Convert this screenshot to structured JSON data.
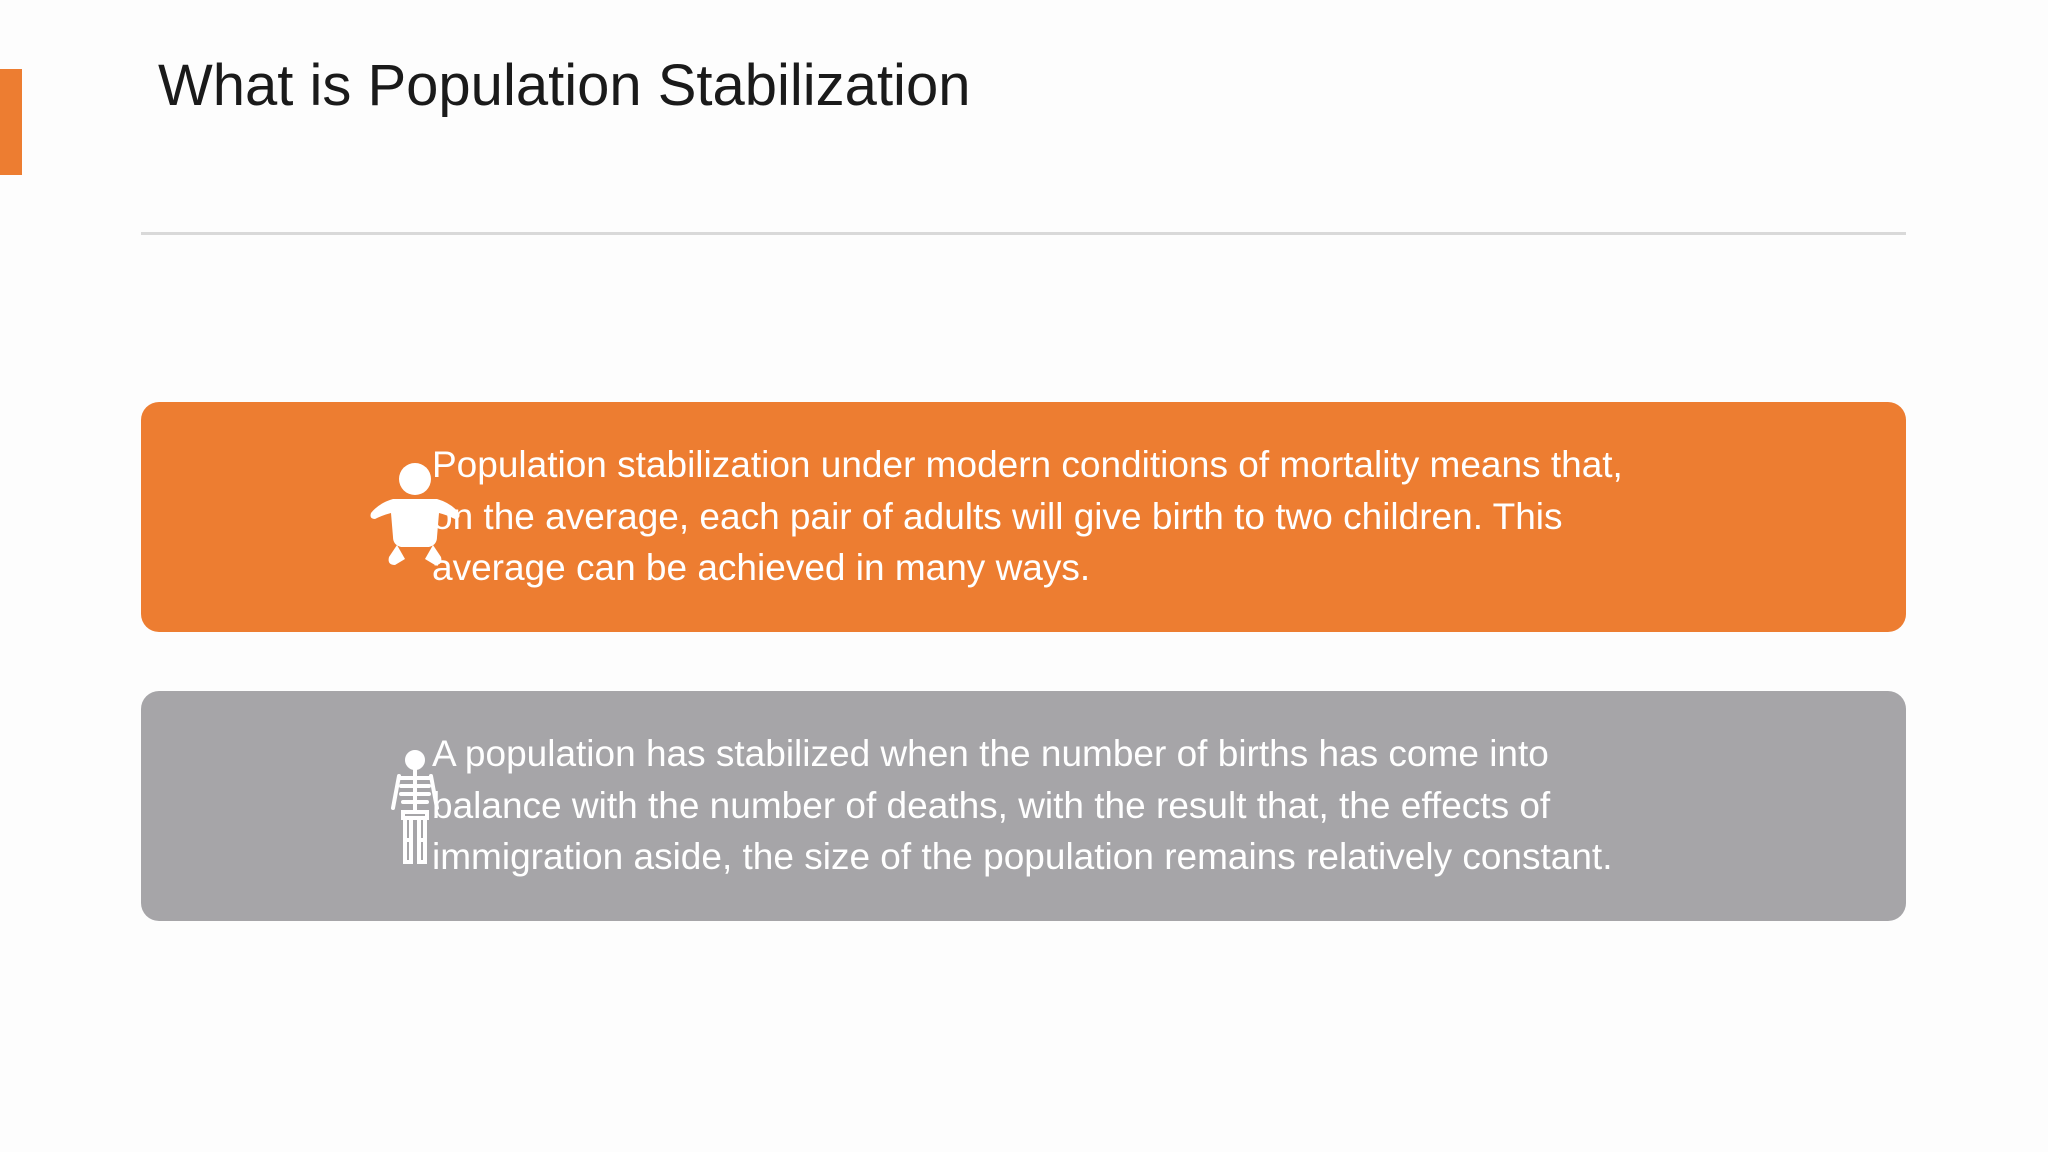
{
  "slide": {
    "title": "What is Population Stabilization",
    "cards": [
      {
        "lines": [
          "Population stabilization under modern conditions of mortality means that,",
          "on the average, each pair of adults will give birth to two children. This",
          "average can be achieved in many ways."
        ]
      },
      {
        "lines": [
          "A population has stabilized when the number of births has come into",
          "balance with the number of deaths, with the result that, the effects of",
          "immigration aside, the size of the population remains relatively constant."
        ]
      }
    ]
  }
}
